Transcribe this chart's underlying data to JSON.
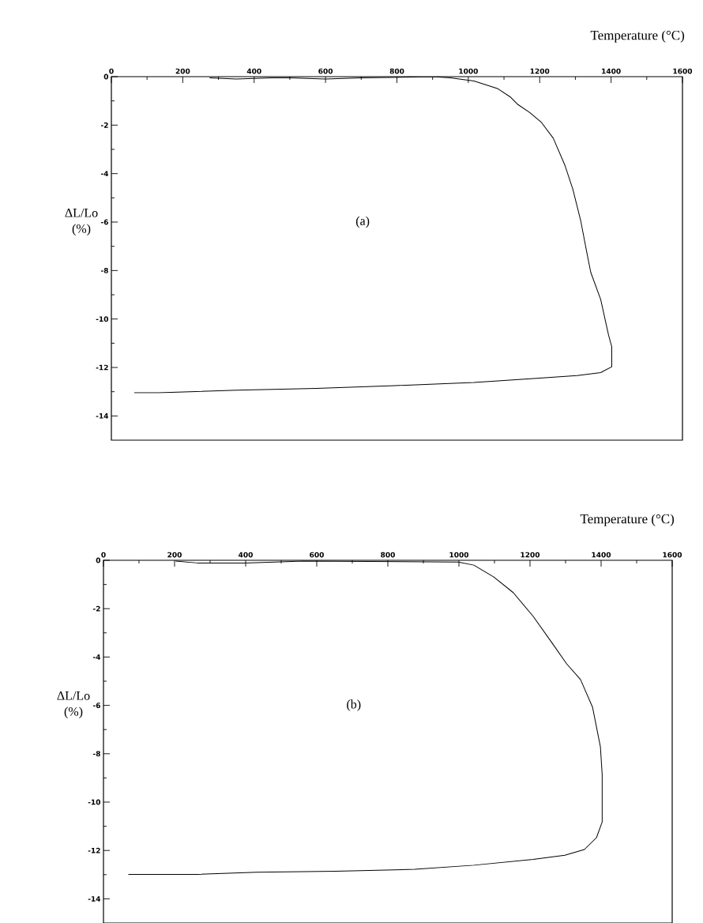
{
  "chart_data": [
    {
      "type": "line",
      "xlabel": "Temperature (°C)",
      "ylabel": "ΔL/Lo (%)",
      "annotations": [
        "(a)"
      ],
      "xlim": [
        0,
        1600
      ],
      "xticks": [
        0,
        200,
        400,
        600,
        800,
        1000,
        1200,
        1400,
        1600
      ],
      "ylim": [
        -15,
        0
      ],
      "yticks": [
        0,
        -2,
        -4,
        -6,
        -8,
        -10,
        -12,
        -14
      ],
      "line_style": "solid",
      "marker": "none",
      "series": [
        {
          "color": "#000000",
          "x": [
            275,
            350,
            450,
            500,
            600,
            700,
            900,
            950,
            1016,
            1083,
            1117,
            1139,
            1172,
            1205,
            1238,
            1271,
            1293,
            1315,
            1332,
            1343,
            1371,
            1393,
            1402,
            1402,
            1371,
            1305,
            1183,
            1016,
            795,
            574,
            352,
            131,
            64
          ],
          "values": [
            -0.05,
            -0.1,
            -0.05,
            -0.05,
            -0.1,
            -0.05,
            0,
            -0.05,
            -0.18,
            -0.5,
            -0.83,
            -1.15,
            -1.48,
            -1.89,
            -2.54,
            -3.67,
            -4.65,
            -5.95,
            -7.25,
            -8.07,
            -9.2,
            -10.67,
            -11.15,
            -11.97,
            -12.21,
            -12.33,
            -12.46,
            -12.62,
            -12.75,
            -12.86,
            -12.94,
            -13.04,
            -13.04
          ]
        }
      ]
    },
    {
      "type": "line",
      "xlabel": "Temperature (°C)",
      "ylabel": "ΔL/Lo (%)",
      "annotations": [
        "(b)"
      ],
      "xlim": [
        0,
        1600
      ],
      "xticks": [
        0,
        200,
        400,
        600,
        800,
        1000,
        1200,
        1400,
        1600
      ],
      "ylim": [
        -15,
        0
      ],
      "yticks": [
        0,
        -2,
        -4,
        -6,
        -8,
        -10,
        -12,
        -14
      ],
      "line_style": "solid",
      "marker": "none",
      "series": [
        {
          "color": "#000000",
          "x": [
            203,
            264,
            398,
            564,
            998,
            1042,
            1098,
            1153,
            1209,
            1264,
            1303,
            1342,
            1376,
            1398,
            1403,
            1403,
            1387,
            1353,
            1298,
            1209,
            1042,
            876,
            653,
            431,
            264,
            153,
            70
          ],
          "values": [
            -0.03,
            -0.11,
            -0.11,
            -0.03,
            -0.07,
            -0.2,
            -0.69,
            -1.34,
            -2.32,
            -3.46,
            -4.28,
            -4.93,
            -6.08,
            -7.71,
            -8.86,
            -10.82,
            -11.47,
            -11.96,
            -12.2,
            -12.37,
            -12.61,
            -12.78,
            -12.86,
            -12.9,
            -12.99,
            -12.99,
            -12.99
          ]
        }
      ]
    }
  ]
}
